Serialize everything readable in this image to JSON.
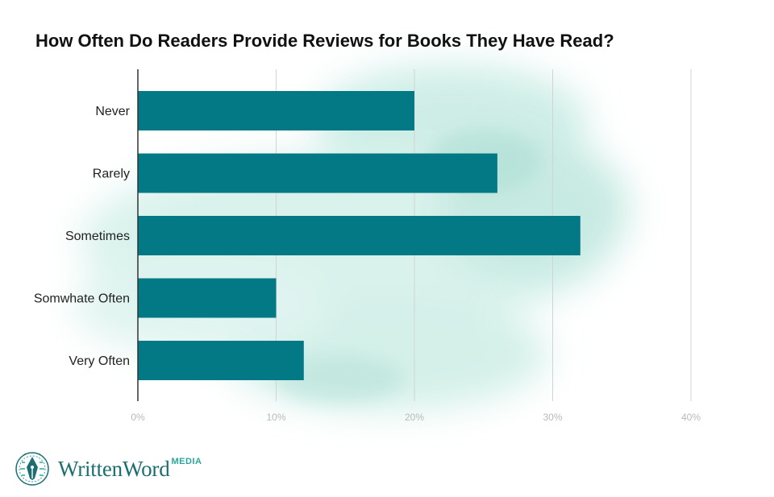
{
  "chart_data": {
    "type": "bar",
    "orientation": "horizontal",
    "title": "How Often Do Readers Provide Reviews for Books They Have Read?",
    "categories": [
      "Never",
      "Rarely",
      "Sometimes",
      "Somwhate Often",
      "Very Often"
    ],
    "values": [
      20,
      26,
      32,
      10,
      12
    ],
    "xlim": [
      0,
      40
    ],
    "xticks": [
      0,
      10,
      20,
      30,
      40
    ],
    "xtick_labels": [
      "0%",
      "10%",
      "20%",
      "30%",
      "40%"
    ],
    "grid": true,
    "bar_color": "#027985"
  },
  "logo": {
    "text": "WrittenWord",
    "suffix": "MEDIA",
    "icon": "fountain-pen-nib-icon"
  },
  "colors": {
    "bar": "#027985",
    "wash": "#bfe8df",
    "brand": "#1b6f72"
  }
}
